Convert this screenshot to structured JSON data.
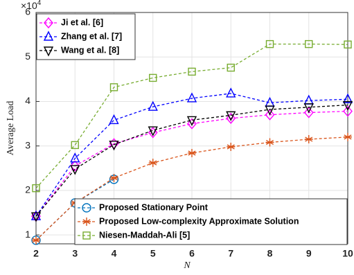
{
  "chart_data": {
    "type": "line",
    "x_label": "N",
    "y_label": "Average Load",
    "y_multiplier": {
      "base": "×10",
      "exponent": "4"
    },
    "x": [
      2,
      3,
      4,
      5,
      6,
      7,
      8,
      9,
      10
    ],
    "xlim": [
      2,
      10
    ],
    "xticks": [
      2,
      3,
      4,
      5,
      6,
      7,
      8,
      9,
      10
    ],
    "ylim": [
      0.8,
      6
    ],
    "yticks": [
      1,
      2,
      3,
      4,
      5,
      6
    ],
    "grid": true,
    "series": [
      {
        "name": "Ji et al. [6]",
        "color": "#ff00ff",
        "marker": "diamond",
        "legend": "upper left",
        "values": [
          1.42,
          2.55,
          3.05,
          3.3,
          3.5,
          3.62,
          3.7,
          3.75,
          3.78
        ]
      },
      {
        "name": "Zhang et al. [7]",
        "color": "#0000ff",
        "marker": "triangle-up",
        "legend": "upper left",
        "values": [
          1.42,
          2.72,
          3.58,
          3.88,
          4.07,
          4.18,
          3.97,
          4.02,
          4.05
        ]
      },
      {
        "name": "Wang et al. [8]",
        "color": "#000000",
        "marker": "triangle-down",
        "legend": "upper left",
        "values": [
          1.42,
          2.48,
          3.03,
          3.35,
          3.58,
          3.69,
          3.82,
          3.87,
          3.92
        ]
      },
      {
        "name": "Proposed Stationary Point",
        "color": "#0072bd",
        "marker": "circle",
        "legend": "lower right",
        "values": [
          0.88,
          1.72,
          2.25,
          null,
          null,
          null,
          null,
          null,
          null
        ]
      },
      {
        "name": "Proposed Low-complexity Approximate Solution",
        "color": "#d95319",
        "marker": "asterisk",
        "legend": "lower right",
        "values": [
          0.88,
          1.72,
          2.28,
          2.62,
          2.84,
          2.98,
          3.08,
          3.15,
          3.2
        ]
      },
      {
        "name": "Niesen-Maddah-Ali [5]",
        "color": "#77ac30",
        "marker": "square",
        "legend": "lower right",
        "values": [
          2.05,
          3.02,
          4.32,
          4.53,
          4.67,
          4.76,
          5.29,
          5.29,
          5.28
        ]
      }
    ]
  }
}
